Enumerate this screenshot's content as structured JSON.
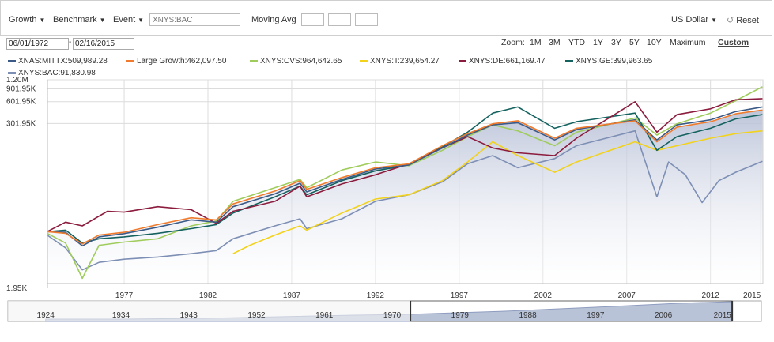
{
  "toolbar": {
    "growth_label": "Growth",
    "benchmark_label": "Benchmark",
    "event_label": "Event",
    "search_placeholder": "XNYS:BAC",
    "moving_avg_label": "Moving Avg",
    "currency_label": "US Dollar",
    "reset_label": "Reset"
  },
  "dates": {
    "start": "06/01/1972",
    "end": "02/16/2015",
    "separator": "-"
  },
  "zoom": {
    "label": "Zoom:",
    "options": [
      "1M",
      "3M",
      "YTD",
      "1Y",
      "3Y",
      "5Y",
      "10Y",
      "Maximum",
      "Custom"
    ],
    "selected": "Custom"
  },
  "legend": [
    {
      "text": "XNAS:MITTX:509,989.28",
      "color": "#3b5a87"
    },
    {
      "text": "Large Growth:462,097.50",
      "color": "#f07b2c"
    },
    {
      "text": "XNYS:CVS:964,642.65",
      "color": "#9fcc5b"
    },
    {
      "text": "XNYS:T:239,654.27",
      "color": "#f2d21b"
    },
    {
      "text": "XNYS:DE:661,169.47",
      "color": "#8c1c3e"
    },
    {
      "text": "XNYS:GE:399,963.65",
      "color": "#14625f"
    },
    {
      "text": "XNYS:BAC:91,830.98",
      "color": "#7e8fb5"
    }
  ],
  "chart_data": {
    "type": "line",
    "y_scale": "log",
    "y_ticks": [
      {
        "value": 1950,
        "label": "1.95K"
      },
      {
        "value": 301950,
        "label": "301.95K"
      },
      {
        "value": 601950,
        "label": "601.95K"
      },
      {
        "value": 901950,
        "label": "901.95K"
      },
      {
        "value": 1200000,
        "label": "1.20M"
      }
    ],
    "ylim": [
      1950,
      1200000
    ],
    "x_range": [
      1972.42,
      2015.13
    ],
    "x_ticks": [
      "1977",
      "1982",
      "1987",
      "1992",
      "1997",
      "2002",
      "2007",
      "2012",
      "2015"
    ],
    "x_tick_values": [
      1977,
      1982,
      1987,
      1992,
      1997,
      2002,
      2007,
      2012,
      2015
    ],
    "shaded_series": "Large Growth",
    "series": [
      {
        "name": "XNAS:MITTX",
        "color": "#3b5a87",
        "points": [
          [
            1972.4,
            10000
          ],
          [
            1973.5,
            9800
          ],
          [
            1974.5,
            6400
          ],
          [
            1975.5,
            8500
          ],
          [
            1977,
            9400
          ],
          [
            1979,
            11500
          ],
          [
            1981,
            14500
          ],
          [
            1982.5,
            13500
          ],
          [
            1983.5,
            22000
          ],
          [
            1986,
            33000
          ],
          [
            1987.5,
            46000
          ],
          [
            1987.9,
            35000
          ],
          [
            1990,
            52000
          ],
          [
            1992,
            72000
          ],
          [
            1994,
            82000
          ],
          [
            1996,
            140000
          ],
          [
            1997.5,
            210000
          ],
          [
            1999,
            290000
          ],
          [
            2000.5,
            310000
          ],
          [
            2002.7,
            180000
          ],
          [
            2004,
            250000
          ],
          [
            2007.5,
            340000
          ],
          [
            2008.8,
            180000
          ],
          [
            2010,
            290000
          ],
          [
            2012,
            340000
          ],
          [
            2013.5,
            440000
          ],
          [
            2015.1,
            509989
          ]
        ]
      },
      {
        "name": "Large Growth",
        "color": "#f07b2c",
        "points": [
          [
            1972.4,
            10000
          ],
          [
            1973.5,
            9500
          ],
          [
            1974.5,
            6800
          ],
          [
            1975.5,
            9000
          ],
          [
            1977,
            9800
          ],
          [
            1979,
            12500
          ],
          [
            1981,
            15500
          ],
          [
            1982.5,
            14500
          ],
          [
            1983.5,
            24000
          ],
          [
            1986,
            36000
          ],
          [
            1987.5,
            50000
          ],
          [
            1987.9,
            38000
          ],
          [
            1990,
            55000
          ],
          [
            1992,
            75000
          ],
          [
            1994,
            85000
          ],
          [
            1996,
            150000
          ],
          [
            1997.5,
            220000
          ],
          [
            1999,
            300000
          ],
          [
            2000.5,
            330000
          ],
          [
            2002.7,
            190000
          ],
          [
            2004,
            260000
          ],
          [
            2007.5,
            330000
          ],
          [
            2008.8,
            170000
          ],
          [
            2010,
            270000
          ],
          [
            2012,
            320000
          ],
          [
            2013.5,
            410000
          ],
          [
            2015.1,
            462097
          ]
        ]
      },
      {
        "name": "XNYS:CVS",
        "color": "#9fcc5b",
        "points": [
          [
            1972.4,
            9500
          ],
          [
            1973.5,
            7000
          ],
          [
            1974.5,
            2300
          ],
          [
            1975.5,
            6500
          ],
          [
            1977,
            7200
          ],
          [
            1979,
            8000
          ],
          [
            1981,
            12000
          ],
          [
            1982.5,
            14000
          ],
          [
            1983.5,
            26000
          ],
          [
            1986,
            40000
          ],
          [
            1987.5,
            52000
          ],
          [
            1987.9,
            40000
          ],
          [
            1990,
            70000
          ],
          [
            1992,
            90000
          ],
          [
            1994,
            80000
          ],
          [
            1996,
            130000
          ],
          [
            1997.5,
            200000
          ],
          [
            1999,
            290000
          ],
          [
            2000.5,
            240000
          ],
          [
            2002.7,
            150000
          ],
          [
            2004,
            230000
          ],
          [
            2007.5,
            360000
          ],
          [
            2008.8,
            210000
          ],
          [
            2010,
            300000
          ],
          [
            2012,
            420000
          ],
          [
            2013.5,
            620000
          ],
          [
            2015.1,
            964642
          ]
        ]
      },
      {
        "name": "XNYS:T",
        "color": "#f2d21b",
        "points": [
          [
            1983.5,
            5000
          ],
          [
            1984.5,
            6500
          ],
          [
            1986,
            9000
          ],
          [
            1987.5,
            12000
          ],
          [
            1987.9,
            10500
          ],
          [
            1990,
            18000
          ],
          [
            1992,
            28000
          ],
          [
            1994,
            32000
          ],
          [
            1996,
            50000
          ],
          [
            1997.5,
            90000
          ],
          [
            1999,
            170000
          ],
          [
            2000.5,
            110000
          ],
          [
            2002.7,
            65000
          ],
          [
            2004,
            90000
          ],
          [
            2007.5,
            170000
          ],
          [
            2008.8,
            130000
          ],
          [
            2010,
            150000
          ],
          [
            2012,
            190000
          ],
          [
            2013.5,
            220000
          ],
          [
            2015.1,
            239654
          ]
        ]
      },
      {
        "name": "XNYS:DE",
        "color": "#8c1c3e",
        "points": [
          [
            1972.4,
            10000
          ],
          [
            1973.5,
            13500
          ],
          [
            1974.5,
            12000
          ],
          [
            1976,
            19000
          ],
          [
            1977,
            18500
          ],
          [
            1979,
            22000
          ],
          [
            1981,
            20000
          ],
          [
            1982.5,
            13000
          ],
          [
            1983.5,
            19000
          ],
          [
            1986,
            26000
          ],
          [
            1987.5,
            42000
          ],
          [
            1987.9,
            30000
          ],
          [
            1990,
            45000
          ],
          [
            1992,
            60000
          ],
          [
            1994,
            85000
          ],
          [
            1996,
            140000
          ],
          [
            1997.5,
            200000
          ],
          [
            1999,
            140000
          ],
          [
            2000.5,
            120000
          ],
          [
            2002.7,
            110000
          ],
          [
            2004,
            190000
          ],
          [
            2007.5,
            600000
          ],
          [
            2008.8,
            230000
          ],
          [
            2010,
            400000
          ],
          [
            2012,
            480000
          ],
          [
            2013.5,
            640000
          ],
          [
            2015.1,
            661169
          ]
        ]
      },
      {
        "name": "XNYS:GE",
        "color": "#14625f",
        "points": [
          [
            1972.4,
            10000
          ],
          [
            1973.5,
            10500
          ],
          [
            1974.5,
            7000
          ],
          [
            1975.5,
            8000
          ],
          [
            1977,
            8500
          ],
          [
            1979,
            9500
          ],
          [
            1981,
            11000
          ],
          [
            1982.5,
            12500
          ],
          [
            1983.5,
            18000
          ],
          [
            1986,
            30000
          ],
          [
            1987.5,
            42000
          ],
          [
            1987.9,
            32000
          ],
          [
            1990,
            50000
          ],
          [
            1992,
            68000
          ],
          [
            1994,
            82000
          ],
          [
            1996,
            145000
          ],
          [
            1997.5,
            230000
          ],
          [
            1999,
            420000
          ],
          [
            2000.5,
            510000
          ],
          [
            2002.7,
            260000
          ],
          [
            2004,
            320000
          ],
          [
            2007.5,
            420000
          ],
          [
            2008.8,
            130000
          ],
          [
            2010,
            200000
          ],
          [
            2012,
            260000
          ],
          [
            2013.5,
            350000
          ],
          [
            2015.1,
            399963
          ]
        ]
      },
      {
        "name": "XNYS:BAC",
        "color": "#7e8fb5",
        "points": [
          [
            1972.4,
            9000
          ],
          [
            1973.5,
            6000
          ],
          [
            1974.5,
            3000
          ],
          [
            1975.5,
            3800
          ],
          [
            1977,
            4200
          ],
          [
            1979,
            4500
          ],
          [
            1981,
            5000
          ],
          [
            1982.5,
            5500
          ],
          [
            1983.5,
            8000
          ],
          [
            1986,
            12000
          ],
          [
            1987.5,
            15000
          ],
          [
            1987.9,
            11000
          ],
          [
            1990,
            15000
          ],
          [
            1992,
            26000
          ],
          [
            1994,
            32000
          ],
          [
            1996,
            48000
          ],
          [
            1997.5,
            85000
          ],
          [
            1999,
            110000
          ],
          [
            2000.5,
            75000
          ],
          [
            2002.7,
            100000
          ],
          [
            2004,
            150000
          ],
          [
            2007.5,
            240000
          ],
          [
            2008.8,
            30000
          ],
          [
            2009.5,
            90000
          ],
          [
            2010.5,
            60000
          ],
          [
            2011.5,
            25000
          ],
          [
            2012.5,
            50000
          ],
          [
            2013.5,
            65000
          ],
          [
            2015.1,
            91831
          ]
        ]
      }
    ]
  },
  "navigator": {
    "labels": [
      "1924",
      "1934",
      "1943",
      "1952",
      "1961",
      "1970",
      "1979",
      "1988",
      "1997",
      "2006",
      "2015"
    ],
    "label_values": [
      1924,
      1934,
      1943,
      1952,
      1961,
      1970,
      1979,
      1988,
      1997,
      2006,
      2015
    ],
    "range": [
      1919,
      2019
    ],
    "selected": [
      1972.42,
      2015.13
    ]
  }
}
